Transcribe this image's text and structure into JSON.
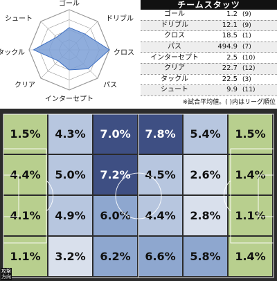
{
  "radar": {
    "axes": [
      "ゴール",
      "ドリブル",
      "クロス",
      "パス",
      "インターセプト",
      "クリア",
      "タックル",
      "シュート"
    ],
    "ranks": [
      9,
      9,
      1,
      7,
      10,
      12,
      3,
      11
    ],
    "fill_color": "#7b9fd6",
    "stroke_color": "#3d6fc2"
  },
  "stats": {
    "title": "チームスタッツ",
    "rows": [
      {
        "name": "ゴール",
        "value": "1.2",
        "rank": "(9)"
      },
      {
        "name": "ドリブル",
        "value": "12.1",
        "rank": "(9)"
      },
      {
        "name": "クロス",
        "value": "18.5",
        "rank": "(1)"
      },
      {
        "name": "パス",
        "value": "494.9",
        "rank": "(7)"
      },
      {
        "name": "インターセプト",
        "value": "2.5",
        "rank": "(10)"
      },
      {
        "name": "クリア",
        "value": "22.7",
        "rank": "(12)"
      },
      {
        "name": "タックル",
        "value": "22.5",
        "rank": "(3)"
      },
      {
        "name": "シュート",
        "value": "9.9",
        "rank": "(11)"
      }
    ],
    "note": "※試合平均値。( )内はリーグ順位"
  },
  "field": {
    "zones": [
      [
        "1.5%",
        "4.3%",
        "7.0%",
        "7.8%",
        "5.4%",
        "1.5%"
      ],
      [
        "4.4%",
        "5.0%",
        "7.2%",
        "4.5%",
        "2.6%",
        "1.4%"
      ],
      [
        "4.1%",
        "4.9%",
        "6.0%",
        "4.4%",
        "2.8%",
        "1.1%"
      ],
      [
        "1.1%",
        "3.2%",
        "6.2%",
        "6.6%",
        "5.8%",
        "1.4%"
      ]
    ],
    "attack_label": "攻撃方向"
  }
}
